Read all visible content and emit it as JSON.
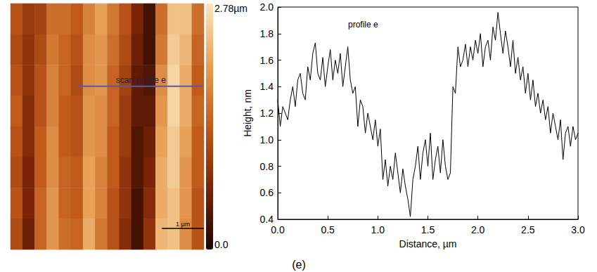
{
  "chart_data": [
    {
      "type": "heatmap",
      "xlim": [
        0,
        4.6
      ],
      "ylim": [
        0,
        5.85
      ],
      "tick_labels": false,
      "cells": [
        [
          1.3,
          1.0,
          1.1,
          1.6,
          1.6,
          1.4,
          1.8,
          2.1,
          1.7,
          1.3,
          0.7,
          0.3,
          1.6,
          2.4,
          2.4,
          1.6
        ],
        [
          1.2,
          0.9,
          1.2,
          1.7,
          1.5,
          1.3,
          1.9,
          2.0,
          1.6,
          1.2,
          0.6,
          0.3,
          1.7,
          2.5,
          2.3,
          1.5
        ],
        [
          1.3,
          0.9,
          1.3,
          1.8,
          1.5,
          1.2,
          1.9,
          2.0,
          1.5,
          1.1,
          0.5,
          0.4,
          1.9,
          2.6,
          2.2,
          1.4
        ],
        [
          1.4,
          0.8,
          1.3,
          1.8,
          1.4,
          1.3,
          2.0,
          1.9,
          1.5,
          1.0,
          0.5,
          0.5,
          2.0,
          2.6,
          2.2,
          1.5
        ],
        [
          1.3,
          0.8,
          1.4,
          1.9,
          1.4,
          1.3,
          2.0,
          1.9,
          1.4,
          1.0,
          0.4,
          0.6,
          2.1,
          2.5,
          2.1,
          1.4
        ],
        [
          1.2,
          0.7,
          1.4,
          1.9,
          1.5,
          1.4,
          2.1,
          1.8,
          1.4,
          0.9,
          0.4,
          0.7,
          2.2,
          2.5,
          2.0,
          1.4
        ],
        [
          1.3,
          0.7,
          1.5,
          2.0,
          1.5,
          1.4,
          2.1,
          1.8,
          1.3,
          0.9,
          0.3,
          0.8,
          2.2,
          2.4,
          2.0,
          1.3
        ],
        [
          1.2,
          0.6,
          1.5,
          2.0,
          1.6,
          1.5,
          2.2,
          1.7,
          1.3,
          0.8,
          0.3,
          0.9,
          2.3,
          2.4,
          1.9,
          1.3
        ]
      ],
      "colorbar": {
        "range": [
          0,
          2.78
        ],
        "ticks": [
          {
            "value": 2.78,
            "label": "2.78µm"
          },
          {
            "value": 0,
            "label": "0.0"
          }
        ],
        "colors": [
          "#1a0500",
          "#7a2408",
          "#c05a1a",
          "#e8a055",
          "#fbe6c0"
        ]
      },
      "annotations": [
        {
          "text": "scan profile e",
          "x": [
            1.6,
            4.6
          ],
          "y": 3.88,
          "color": "#5a5aa0"
        }
      ],
      "scale_bar": {
        "text": "1 µm",
        "length": 1,
        "x": 3.6,
        "y": 0.5,
        "color": "#000000"
      }
    },
    {
      "type": "line",
      "title": "profile e",
      "x_label": "Distance, µm",
      "y_label": "Height, nm",
      "color": "#000000",
      "grid": false,
      "xlim": [
        0,
        3
      ],
      "ylim": [
        0.4,
        2.0
      ],
      "xticks": [
        {
          "value": 0,
          "label": "0.0"
        },
        0.5,
        {
          "value": 1,
          "label": "1.0"
        },
        1.5,
        {
          "value": 2,
          "label": "2.0"
        },
        2.5,
        {
          "value": 3,
          "label": "3.0"
        }
      ],
      "yticks": [
        0.4,
        0.6,
        0.8,
        {
          "value": 1,
          "label": "1.0"
        },
        1.2,
        1.4,
        1.6,
        1.8,
        {
          "value": 2,
          "label": "2.0"
        }
      ],
      "x": [
        0.0,
        0.025,
        0.05,
        0.075,
        0.1,
        0.125,
        0.15,
        0.175,
        0.2,
        0.225,
        0.25,
        0.275,
        0.3,
        0.325,
        0.35,
        0.375,
        0.4,
        0.425,
        0.45,
        0.475,
        0.5,
        0.525,
        0.55,
        0.575,
        0.6,
        0.625,
        0.65,
        0.675,
        0.7,
        0.725,
        0.75,
        0.775,
        0.8,
        0.825,
        0.85,
        0.875,
        0.9,
        0.925,
        0.95,
        0.975,
        1.0,
        1.025,
        1.05,
        1.075,
        1.1,
        1.125,
        1.15,
        1.175,
        1.2,
        1.225,
        1.25,
        1.275,
        1.3,
        1.325,
        1.35,
        1.375,
        1.4,
        1.425,
        1.45,
        1.475,
        1.5,
        1.525,
        1.55,
        1.575,
        1.6,
        1.625,
        1.65,
        1.675,
        1.7,
        1.725,
        1.75,
        1.775,
        1.8,
        1.825,
        1.85,
        1.875,
        1.9,
        1.925,
        1.95,
        1.975,
        2.0,
        2.025,
        2.05,
        2.075,
        2.1,
        2.125,
        2.15,
        2.175,
        2.2,
        2.225,
        2.25,
        2.275,
        2.3,
        2.325,
        2.35,
        2.375,
        2.4,
        2.425,
        2.45,
        2.475,
        2.5,
        2.525,
        2.55,
        2.575,
        2.6,
        2.625,
        2.65,
        2.675,
        2.7,
        2.725,
        2.75,
        2.775,
        2.8,
        2.825,
        2.85,
        2.875,
        2.9,
        2.925,
        2.95,
        2.975,
        3.0
      ],
      "values": [
        1.3,
        1.1,
        1.25,
        1.2,
        1.15,
        1.3,
        1.4,
        1.25,
        1.45,
        1.5,
        1.35,
        1.3,
        1.55,
        1.45,
        1.65,
        1.73,
        1.5,
        1.45,
        1.62,
        1.4,
        1.55,
        1.68,
        1.45,
        1.6,
        1.5,
        1.65,
        1.4,
        1.55,
        1.7,
        1.45,
        1.35,
        1.4,
        1.1,
        1.3,
        1.25,
        1.05,
        1.2,
        1.1,
        1.0,
        1.15,
        0.95,
        1.08,
        0.7,
        0.85,
        0.65,
        0.8,
        0.7,
        0.9,
        0.75,
        0.6,
        0.78,
        0.65,
        0.55,
        0.42,
        0.7,
        0.8,
        0.95,
        0.7,
        0.9,
        1.0,
        0.8,
        1.05,
        0.7,
        0.85,
        0.95,
        0.75,
        1.0,
        0.8,
        0.7,
        0.75,
        1.4,
        1.35,
        1.7,
        1.55,
        1.6,
        1.72,
        1.55,
        1.7,
        1.6,
        1.75,
        1.65,
        1.8,
        1.55,
        1.7,
        1.75,
        1.6,
        1.85,
        1.75,
        1.96,
        1.8,
        1.65,
        1.82,
        1.7,
        1.55,
        1.75,
        1.5,
        1.62,
        1.45,
        1.55,
        1.35,
        1.5,
        1.3,
        1.45,
        1.25,
        1.35,
        1.2,
        1.3,
        1.15,
        1.25,
        1.05,
        1.2,
        1.1,
        1.0,
        1.15,
        0.85,
        1.05,
        1.1,
        0.95,
        1.1,
        1.0,
        1.05
      ]
    }
  ],
  "caption": "(e)"
}
